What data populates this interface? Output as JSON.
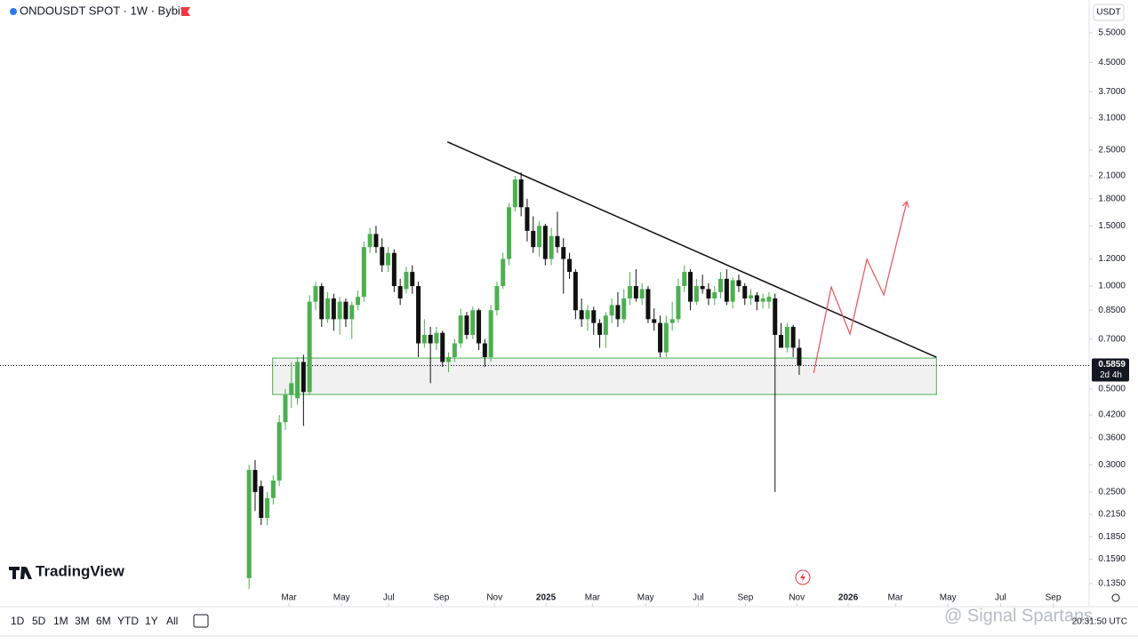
{
  "header": {
    "symbol": "ONDOUSDT SPOT · 1W · Bybit",
    "currency": "USDT"
  },
  "branding": "TradingView",
  "toolbar": {
    "timeframes": [
      "1D",
      "5D",
      "1M",
      "3M",
      "6M",
      "YTD",
      "1Y",
      "All"
    ],
    "time": "20:31:50 UTC"
  },
  "watermark": "@ Signal Spartans",
  "chart_data": {
    "type": "candlestick",
    "log_scale": true,
    "up_color": "#4caf50",
    "down_color": "#111111",
    "ylim": [
      0.1155,
      6.86
    ],
    "yticks": [
      {
        "value": 5.5,
        "label": "5.5000"
      },
      {
        "value": 4.5,
        "label": "4.5000"
      },
      {
        "value": 3.7,
        "label": "3.7000"
      },
      {
        "value": 3.1,
        "label": "3.1000"
      },
      {
        "value": 2.5,
        "label": "2.5000"
      },
      {
        "value": 2.1,
        "label": "2.1000"
      },
      {
        "value": 1.8,
        "label": "1.8000"
      },
      {
        "value": 1.5,
        "label": "1.5000"
      },
      {
        "value": 1.2,
        "label": "1.2000"
      },
      {
        "value": 1,
        "label": "1.0000"
      },
      {
        "value": 0.85,
        "label": "0.8500"
      },
      {
        "value": 0.7,
        "label": "0.7000"
      },
      {
        "value": 0.5,
        "label": "0.5000"
      },
      {
        "value": 0.42,
        "label": "0.4200"
      },
      {
        "value": 0.36,
        "label": "0.3600"
      },
      {
        "value": 0.3,
        "label": "0.3000"
      },
      {
        "value": 0.25,
        "label": "0.2500"
      },
      {
        "value": 0.215,
        "label": "0.2150"
      },
      {
        "value": 0.185,
        "label": "0.1850"
      },
      {
        "value": 0.159,
        "label": "0.1590"
      },
      {
        "value": 0.135,
        "label": "0.1350"
      }
    ],
    "xlim": [
      -41.2,
      138.95
    ],
    "xticks": [
      {
        "value": 6.6,
        "label": "Mar"
      },
      {
        "value": 15.3,
        "label": "May"
      },
      {
        "value": 23.1,
        "label": "Jul"
      },
      {
        "value": 31.8,
        "label": "Sep"
      },
      {
        "value": 40.6,
        "label": "Nov"
      },
      {
        "value": 49.1,
        "label": "2025"
      },
      {
        "value": 56.8,
        "label": "Mar"
      },
      {
        "value": 65.6,
        "label": "May"
      },
      {
        "value": 74.3,
        "label": "Jul"
      },
      {
        "value": 82.1,
        "label": "Sep"
      },
      {
        "value": 90.6,
        "label": "Nov"
      },
      {
        "value": 99.1,
        "label": "2026"
      },
      {
        "value": 106.9,
        "label": "Mar"
      },
      {
        "value": 115.6,
        "label": "May"
      },
      {
        "value": 124.3,
        "label": "Jul"
      },
      {
        "value": 133.0,
        "label": "Sep"
      }
    ],
    "candles": [
      [
        0.14,
        0.3,
        0.13,
        0.29
      ],
      [
        0.29,
        0.31,
        0.22,
        0.25
      ],
      [
        0.26,
        0.27,
        0.2,
        0.21
      ],
      [
        0.21,
        0.25,
        0.2,
        0.24
      ],
      [
        0.24,
        0.28,
        0.23,
        0.27
      ],
      [
        0.27,
        0.42,
        0.26,
        0.4
      ],
      [
        0.4,
        0.5,
        0.38,
        0.48
      ],
      [
        0.48,
        0.6,
        0.44,
        0.52
      ],
      [
        0.47,
        0.62,
        0.45,
        0.6
      ],
      [
        0.6,
        0.63,
        0.39,
        0.49
      ],
      [
        0.49,
        0.94,
        0.48,
        0.9
      ],
      [
        0.9,
        1.03,
        0.85,
        1.0
      ],
      [
        1.0,
        1.02,
        0.76,
        0.8
      ],
      [
        0.8,
        0.96,
        0.78,
        0.92
      ],
      [
        0.92,
        0.95,
        0.74,
        0.8
      ],
      [
        0.8,
        0.93,
        0.72,
        0.9
      ],
      [
        0.9,
        0.92,
        0.76,
        0.8
      ],
      [
        0.8,
        0.9,
        0.7,
        0.88
      ],
      [
        0.88,
        0.97,
        0.85,
        0.93
      ],
      [
        0.93,
        1.35,
        0.9,
        1.3
      ],
      [
        1.3,
        1.48,
        1.25,
        1.42
      ],
      [
        1.42,
        1.5,
        1.25,
        1.3
      ],
      [
        1.3,
        1.38,
        1.1,
        1.15
      ],
      [
        1.15,
        1.3,
        1.1,
        1.25
      ],
      [
        1.25,
        1.28,
        0.96,
        1.0
      ],
      [
        1.0,
        1.05,
        0.88,
        0.92
      ],
      [
        0.98,
        1.14,
        0.95,
        1.1
      ],
      [
        1.1,
        1.15,
        0.95,
        1.0
      ],
      [
        1.0,
        1.03,
        0.62,
        0.68
      ],
      [
        0.68,
        0.8,
        0.66,
        0.72
      ],
      [
        0.72,
        0.76,
        0.52,
        0.68
      ],
      [
        0.68,
        0.76,
        0.65,
        0.73
      ],
      [
        0.73,
        0.74,
        0.58,
        0.6
      ],
      [
        0.6,
        0.64,
        0.56,
        0.62
      ],
      [
        0.62,
        0.7,
        0.6,
        0.68
      ],
      [
        0.68,
        0.86,
        0.66,
        0.82
      ],
      [
        0.82,
        0.84,
        0.7,
        0.72
      ],
      [
        0.72,
        0.87,
        0.7,
        0.85
      ],
      [
        0.85,
        0.86,
        0.65,
        0.68
      ],
      [
        0.68,
        0.7,
        0.58,
        0.62
      ],
      [
        0.62,
        0.88,
        0.6,
        0.85
      ],
      [
        0.85,
        1.03,
        0.82,
        1.0
      ],
      [
        1.0,
        1.25,
        0.98,
        1.2
      ],
      [
        1.2,
        1.75,
        1.15,
        1.7
      ],
      [
        1.7,
        2.1,
        1.65,
        2.05
      ],
      [
        2.05,
        2.15,
        1.6,
        1.7
      ],
      [
        1.7,
        1.8,
        1.35,
        1.45
      ],
      [
        1.45,
        1.6,
        1.25,
        1.3
      ],
      [
        1.3,
        1.55,
        1.22,
        1.5
      ],
      [
        1.5,
        1.52,
        1.15,
        1.2
      ],
      [
        1.2,
        1.48,
        1.15,
        1.4
      ],
      [
        1.4,
        1.65,
        1.25,
        1.3
      ],
      [
        1.3,
        1.38,
        0.95,
        1.2
      ],
      [
        1.2,
        1.25,
        1.05,
        1.1
      ],
      [
        1.1,
        1.12,
        0.8,
        0.85
      ],
      [
        0.85,
        0.92,
        0.76,
        0.8
      ],
      [
        0.8,
        0.88,
        0.74,
        0.85
      ],
      [
        0.85,
        0.87,
        0.72,
        0.78
      ],
      [
        0.78,
        0.8,
        0.66,
        0.72
      ],
      [
        0.72,
        0.84,
        0.66,
        0.82
      ],
      [
        0.82,
        0.92,
        0.78,
        0.88
      ],
      [
        0.88,
        0.96,
        0.76,
        0.8
      ],
      [
        0.8,
        0.98,
        0.78,
        0.92
      ],
      [
        0.92,
        1.1,
        0.88,
        1.0
      ],
      [
        1.0,
        1.12,
        0.9,
        0.92
      ],
      [
        0.92,
        1.02,
        0.88,
        0.98
      ],
      [
        0.98,
        1.0,
        0.78,
        0.8
      ],
      [
        0.8,
        0.86,
        0.74,
        0.78
      ],
      [
        0.78,
        0.82,
        0.62,
        0.64
      ],
      [
        0.64,
        0.82,
        0.62,
        0.78
      ],
      [
        0.78,
        0.9,
        0.74,
        0.8
      ],
      [
        0.8,
        1.05,
        0.78,
        1.0
      ],
      [
        1.0,
        1.15,
        0.96,
        1.1
      ],
      [
        1.1,
        1.12,
        0.85,
        0.9
      ],
      [
        0.9,
        1.05,
        0.88,
        1.0
      ],
      [
        1.0,
        1.08,
        0.95,
        0.98
      ],
      [
        0.98,
        1.02,
        0.88,
        0.92
      ],
      [
        0.92,
        1.0,
        0.88,
        0.96
      ],
      [
        0.96,
        1.1,
        0.92,
        1.05
      ],
      [
        1.05,
        1.12,
        0.88,
        0.9
      ],
      [
        0.9,
        1.06,
        0.86,
        1.04
      ],
      [
        1.04,
        1.08,
        0.96,
        1.0
      ],
      [
        1.0,
        1.02,
        0.88,
        0.92
      ],
      [
        0.92,
        0.98,
        0.88,
        0.94
      ],
      [
        0.94,
        0.96,
        0.85,
        0.9
      ],
      [
        0.9,
        0.95,
        0.86,
        0.92
      ],
      [
        0.9,
        0.96,
        0.86,
        0.93
      ],
      [
        0.92,
        0.95,
        0.25,
        0.72
      ],
      [
        0.72,
        0.78,
        0.66,
        0.66
      ],
      [
        0.66,
        0.78,
        0.64,
        0.76
      ],
      [
        0.76,
        0.77,
        0.62,
        0.66
      ],
      [
        0.66,
        0.7,
        0.55,
        0.5859
      ]
    ],
    "trendline": {
      "x": [
        32.8,
        113.7
      ],
      "y": [
        2.64,
        0.619
      ],
      "color": "#111111"
    },
    "zone": {
      "x": [
        3.9,
        113.7
      ],
      "y": [
        0.482,
        0.616
      ],
      "color": "#4caf50"
    },
    "forecast": {
      "x": [
        93.4,
        96.3,
        99.4,
        102.2,
        105.0,
        108.8
      ],
      "y": [
        0.557,
        0.994,
        0.724,
        1.197,
        0.942,
        1.766
      ],
      "color": "#e8525a"
    },
    "last_price": {
      "value": 0.5859,
      "countdown": "2d 4h"
    }
  }
}
